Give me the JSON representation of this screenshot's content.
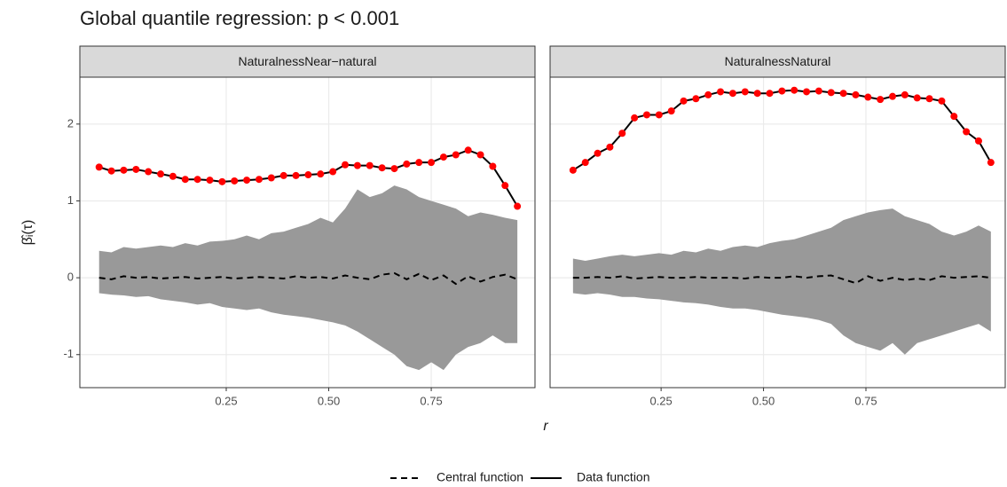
{
  "chart_data": {
    "type": "line",
    "title": "Global quantile regression: p < 0.001",
    "x_label": "r",
    "y_label": "β̂ᵢ(τ)",
    "ylim": [
      -1.43,
      2.61
    ],
    "yticks": [
      -1,
      0,
      1,
      2
    ],
    "grid": true,
    "legend_position": "bottom",
    "legend": [
      {
        "name": "Central function",
        "linetype": "dashed",
        "color": "#000000"
      },
      {
        "name": "Data function",
        "linetype": "solid",
        "color": "#000000"
      }
    ],
    "point_color": "#ff0000",
    "band_color": "#999999",
    "panels": [
      {
        "strip": "NaturalnessNear−natural",
        "xlim": [
          -0.107,
          1.003
        ],
        "xticks": [
          {
            "value": 0.25,
            "label": "0.25"
          },
          {
            "value": 0.5,
            "label": "0.50"
          },
          {
            "value": 0.75,
            "label": "0.75"
          }
        ],
        "x": [
          -0.06,
          -0.03,
          0,
          0.03,
          0.06,
          0.09,
          0.12,
          0.15,
          0.18,
          0.21,
          0.24,
          0.27,
          0.3,
          0.33,
          0.36,
          0.39,
          0.42,
          0.45,
          0.48,
          0.51,
          0.54,
          0.57,
          0.6,
          0.63,
          0.66,
          0.69,
          0.72,
          0.75,
          0.78,
          0.81,
          0.84,
          0.87,
          0.9,
          0.93,
          0.96
        ],
        "data": [
          1.44,
          1.39,
          1.4,
          1.41,
          1.38,
          1.35,
          1.32,
          1.28,
          1.28,
          1.27,
          1.25,
          1.26,
          1.27,
          1.28,
          1.3,
          1.33,
          1.33,
          1.34,
          1.35,
          1.38,
          1.47,
          1.46,
          1.46,
          1.43,
          1.42,
          1.48,
          1.5,
          1.5,
          1.57,
          1.6,
          1.66,
          1.6,
          1.45,
          1.2,
          0.93
        ],
        "central": [
          0,
          -0.02,
          0.02,
          0,
          0.01,
          -0.01,
          0,
          0.01,
          -0.01,
          0,
          0.01,
          -0.01,
          0,
          0.01,
          0,
          -0.01,
          0.02,
          0,
          0.01,
          -0.01,
          0.03,
          0,
          -0.02,
          0.04,
          0.06,
          -0.02,
          0.05,
          -0.03,
          0.03,
          -0.08,
          0.02,
          -0.05,
          0.01,
          0.04,
          -0.02
        ],
        "upper": [
          0.35,
          0.33,
          0.4,
          0.38,
          0.4,
          0.42,
          0.4,
          0.45,
          0.42,
          0.47,
          0.48,
          0.5,
          0.55,
          0.5,
          0.58,
          0.6,
          0.65,
          0.7,
          0.78,
          0.72,
          0.9,
          1.15,
          1.05,
          1.1,
          1.2,
          1.15,
          1.05,
          1.0,
          0.95,
          0.9,
          0.8,
          0.85,
          0.82,
          0.78,
          0.75
        ],
        "lower": [
          -0.2,
          -0.22,
          -0.23,
          -0.25,
          -0.24,
          -0.28,
          -0.3,
          -0.32,
          -0.35,
          -0.33,
          -0.38,
          -0.4,
          -0.42,
          -0.4,
          -0.45,
          -0.48,
          -0.5,
          -0.52,
          -0.55,
          -0.58,
          -0.62,
          -0.7,
          -0.8,
          -0.9,
          -1.0,
          -1.15,
          -1.2,
          -1.1,
          -1.2,
          -1.0,
          -0.9,
          -0.85,
          -0.75,
          -0.85,
          -0.85
        ]
      },
      {
        "strip": "NaturalnessNatural",
        "xlim": [
          -0.021,
          1.09
        ],
        "xticks": [
          {
            "value": 0.25,
            "label": "0.25"
          },
          {
            "value": 0.5,
            "label": "0.50"
          },
          {
            "value": 0.75,
            "label": "0.75"
          }
        ],
        "x": [
          0.035,
          0.065,
          0.095,
          0.125,
          0.155,
          0.185,
          0.215,
          0.245,
          0.275,
          0.305,
          0.335,
          0.365,
          0.395,
          0.425,
          0.455,
          0.485,
          0.515,
          0.545,
          0.575,
          0.605,
          0.635,
          0.665,
          0.695,
          0.725,
          0.755,
          0.785,
          0.815,
          0.845,
          0.875,
          0.905,
          0.935,
          0.965,
          0.995,
          1.025,
          1.055
        ],
        "data": [
          1.4,
          1.5,
          1.62,
          1.7,
          1.88,
          2.08,
          2.12,
          2.12,
          2.17,
          2.3,
          2.33,
          2.38,
          2.42,
          2.4,
          2.42,
          2.4,
          2.4,
          2.43,
          2.44,
          2.42,
          2.43,
          2.41,
          2.4,
          2.38,
          2.35,
          2.32,
          2.36,
          2.38,
          2.34,
          2.33,
          2.3,
          2.1,
          1.9,
          1.78,
          1.5
        ],
        "central": [
          0,
          0,
          0.01,
          0,
          0.02,
          -0.01,
          0,
          0.01,
          0,
          0,
          0.01,
          0,
          0,
          0,
          -0.01,
          0.01,
          0,
          0,
          0.02,
          0,
          0.02,
          0.03,
          -0.02,
          -0.07,
          0.02,
          -0.04,
          0,
          -0.03,
          -0.01,
          -0.03,
          0.02,
          0,
          0.01,
          0.02,
          0
        ],
        "upper": [
          0.25,
          0.22,
          0.25,
          0.28,
          0.3,
          0.28,
          0.3,
          0.32,
          0.3,
          0.35,
          0.33,
          0.38,
          0.35,
          0.4,
          0.42,
          0.4,
          0.45,
          0.48,
          0.5,
          0.55,
          0.6,
          0.65,
          0.75,
          0.8,
          0.85,
          0.88,
          0.9,
          0.8,
          0.75,
          0.7,
          0.6,
          0.55,
          0.6,
          0.68,
          0.6
        ],
        "lower": [
          -0.2,
          -0.22,
          -0.2,
          -0.22,
          -0.25,
          -0.25,
          -0.27,
          -0.28,
          -0.3,
          -0.32,
          -0.33,
          -0.35,
          -0.38,
          -0.4,
          -0.4,
          -0.42,
          -0.45,
          -0.48,
          -0.5,
          -0.52,
          -0.55,
          -0.6,
          -0.75,
          -0.85,
          -0.9,
          -0.95,
          -0.85,
          -1.0,
          -0.85,
          -0.8,
          -0.75,
          -0.7,
          -0.65,
          -0.6,
          -0.7
        ]
      }
    ]
  }
}
